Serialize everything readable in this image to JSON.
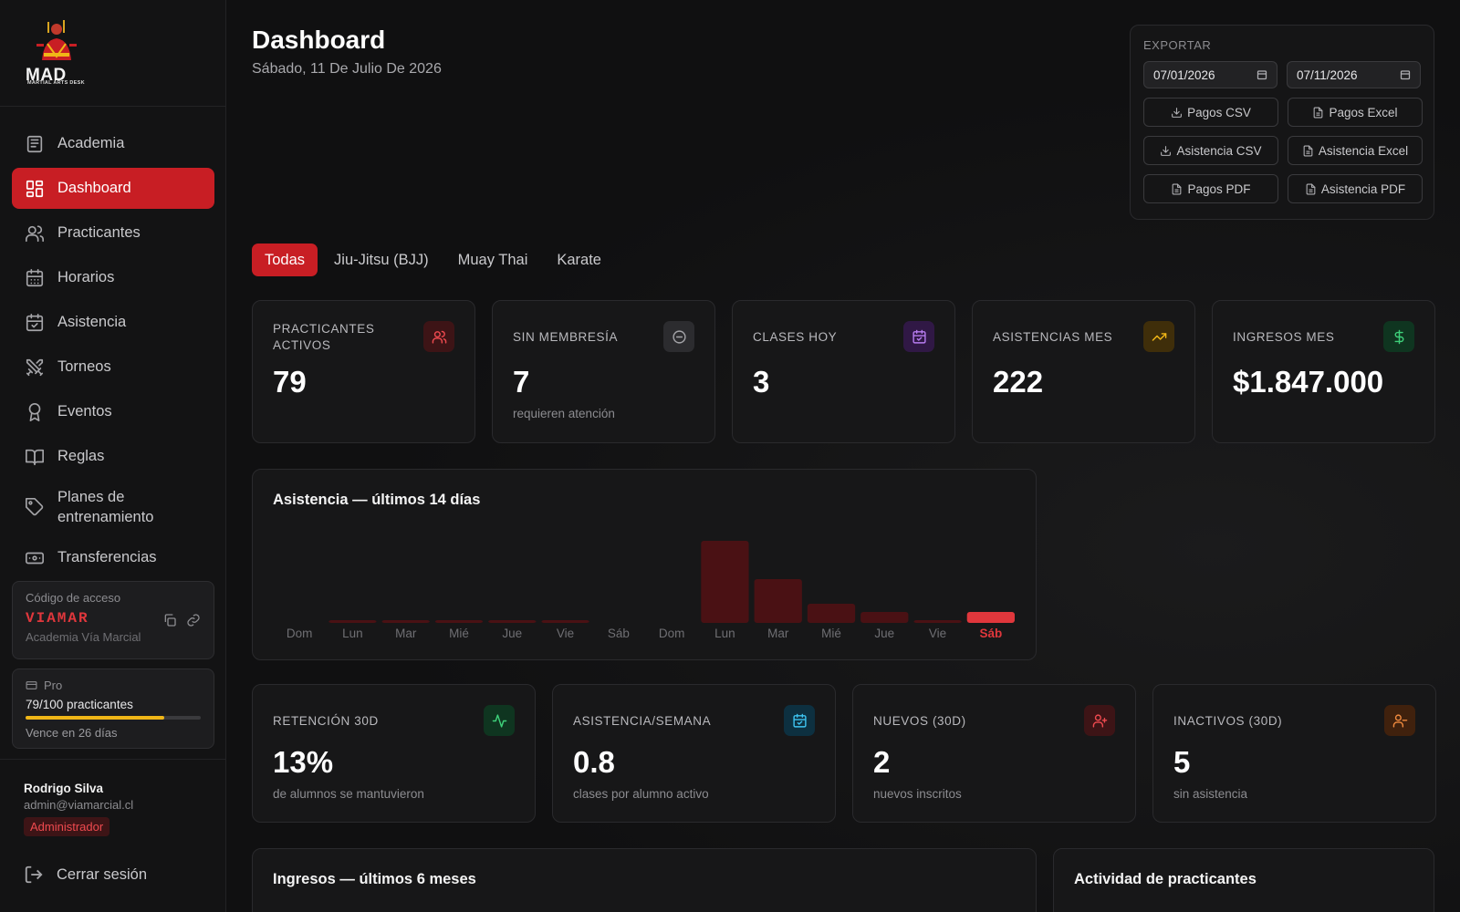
{
  "brand": {
    "logo_text": "MAD",
    "logo_sub": "MARTIAL ARTS DESK"
  },
  "nav": [
    {
      "label": "Academia",
      "icon": "newspaper-icon"
    },
    {
      "label": "Dashboard",
      "icon": "dashboard-icon",
      "active": true
    },
    {
      "label": "Practicantes",
      "icon": "users-icon"
    },
    {
      "label": "Horarios",
      "icon": "calendar-icon"
    },
    {
      "label": "Asistencia",
      "icon": "calendar-check-icon"
    },
    {
      "label": "Torneos",
      "icon": "swords-icon"
    },
    {
      "label": "Eventos",
      "icon": "award-icon"
    },
    {
      "label": "Reglas",
      "icon": "book-icon"
    },
    {
      "label": "Planes de entrenamiento",
      "icon": "tag-icon"
    },
    {
      "label": "Transferencias",
      "icon": "banknote-icon"
    }
  ],
  "access": {
    "label": "Código de acceso",
    "code": "VIAMAR",
    "academy": "Academia Vía Marcial"
  },
  "plan": {
    "name": "Pro",
    "count": "79/100 practicantes",
    "progress": 0.79,
    "expires": "Vence en 26 días"
  },
  "user": {
    "name": "Rodrigo Silva",
    "email": "admin@viamarcial.cl",
    "role": "Administrador"
  },
  "logout": "Cerrar sesión",
  "header": {
    "title": "Dashboard",
    "date": "Sábado, 11 De Julio De 2026"
  },
  "export": {
    "title": "EXPORTAR",
    "from": "07/01/2026",
    "to": "07/11/2026",
    "buttons": [
      {
        "label": "Pagos CSV",
        "icon": "download-icon"
      },
      {
        "label": "Pagos Excel",
        "icon": "file-icon"
      },
      {
        "label": "Asistencia CSV",
        "icon": "download-icon"
      },
      {
        "label": "Asistencia Excel",
        "icon": "file-icon"
      },
      {
        "label": "Pagos PDF",
        "icon": "file-icon"
      },
      {
        "label": "Asistencia PDF",
        "icon": "file-icon"
      }
    ]
  },
  "tabs": [
    "Todas",
    "Jiu-Jitsu (BJJ)",
    "Muay Thai",
    "Karate"
  ],
  "stats": [
    {
      "label": "PRACTICANTES ACTIVOS",
      "value": "79",
      "sub": "",
      "icon": "users-icon",
      "color": "#ef4a4f",
      "bg": "#3d1416"
    },
    {
      "label": "SIN MEMBRESÍA",
      "value": "7",
      "sub": "requieren atención",
      "icon": "minus-circle-icon",
      "color": "#a4a4a8",
      "bg": "#2c2c2f"
    },
    {
      "label": "CLASES HOY",
      "value": "3",
      "sub": "",
      "icon": "calendar-check-icon",
      "color": "#b77cf0",
      "bg": "#301845"
    },
    {
      "label": "ASISTENCIAS MES",
      "value": "222",
      "sub": "",
      "icon": "trending-up-icon",
      "color": "#f0b617",
      "bg": "#3f2e0a"
    },
    {
      "label": "INGRESOS MES",
      "value": "$1.847.000",
      "sub": "",
      "icon": "dollar-icon",
      "color": "#3ed07a",
      "bg": "#0f3520"
    }
  ],
  "attendance_chart": {
    "title": "Asistencia — últimos 14 días",
    "chart_data": {
      "type": "bar",
      "categories": [
        "Dom",
        "Lun",
        "Mar",
        "Mié",
        "Jue",
        "Vie",
        "Sáb",
        "Dom",
        "Lun",
        "Mar",
        "Mié",
        "Jue",
        "Vie",
        "Sáb"
      ],
      "values": [
        0,
        1,
        1,
        1,
        1,
        1,
        0,
        0,
        30,
        16,
        7,
        4,
        1,
        4
      ],
      "highlight_index": 13,
      "bar_color": "#4a1114",
      "highlight_color": "#e0373c",
      "grid": false
    }
  },
  "stats2": [
    {
      "label": "RETENCIÓN 30D",
      "value": "13%",
      "sub": "de alumnos se mantuvieron",
      "icon": "activity-icon",
      "color": "#3ed07a",
      "bg": "#0f3520"
    },
    {
      "label": "ASISTENCIA/SEMANA",
      "value": "0.8",
      "sub": "clases por alumno activo",
      "icon": "calendar-check-icon",
      "color": "#3ec3f0",
      "bg": "#0d3040"
    },
    {
      "label": "NUEVOS (30D)",
      "value": "2",
      "sub": "nuevos inscritos",
      "icon": "user-plus-icon",
      "color": "#ef4a4f",
      "bg": "#3d1416"
    },
    {
      "label": "INACTIVOS (30D)",
      "value": "5",
      "sub": "sin asistencia",
      "icon": "user-minus-icon",
      "color": "#f08a3e",
      "bg": "#40210d"
    }
  ],
  "income_chart": {
    "title": "Ingresos — últimos 6 meses"
  },
  "activity": {
    "title": "Actividad de practicantes"
  }
}
